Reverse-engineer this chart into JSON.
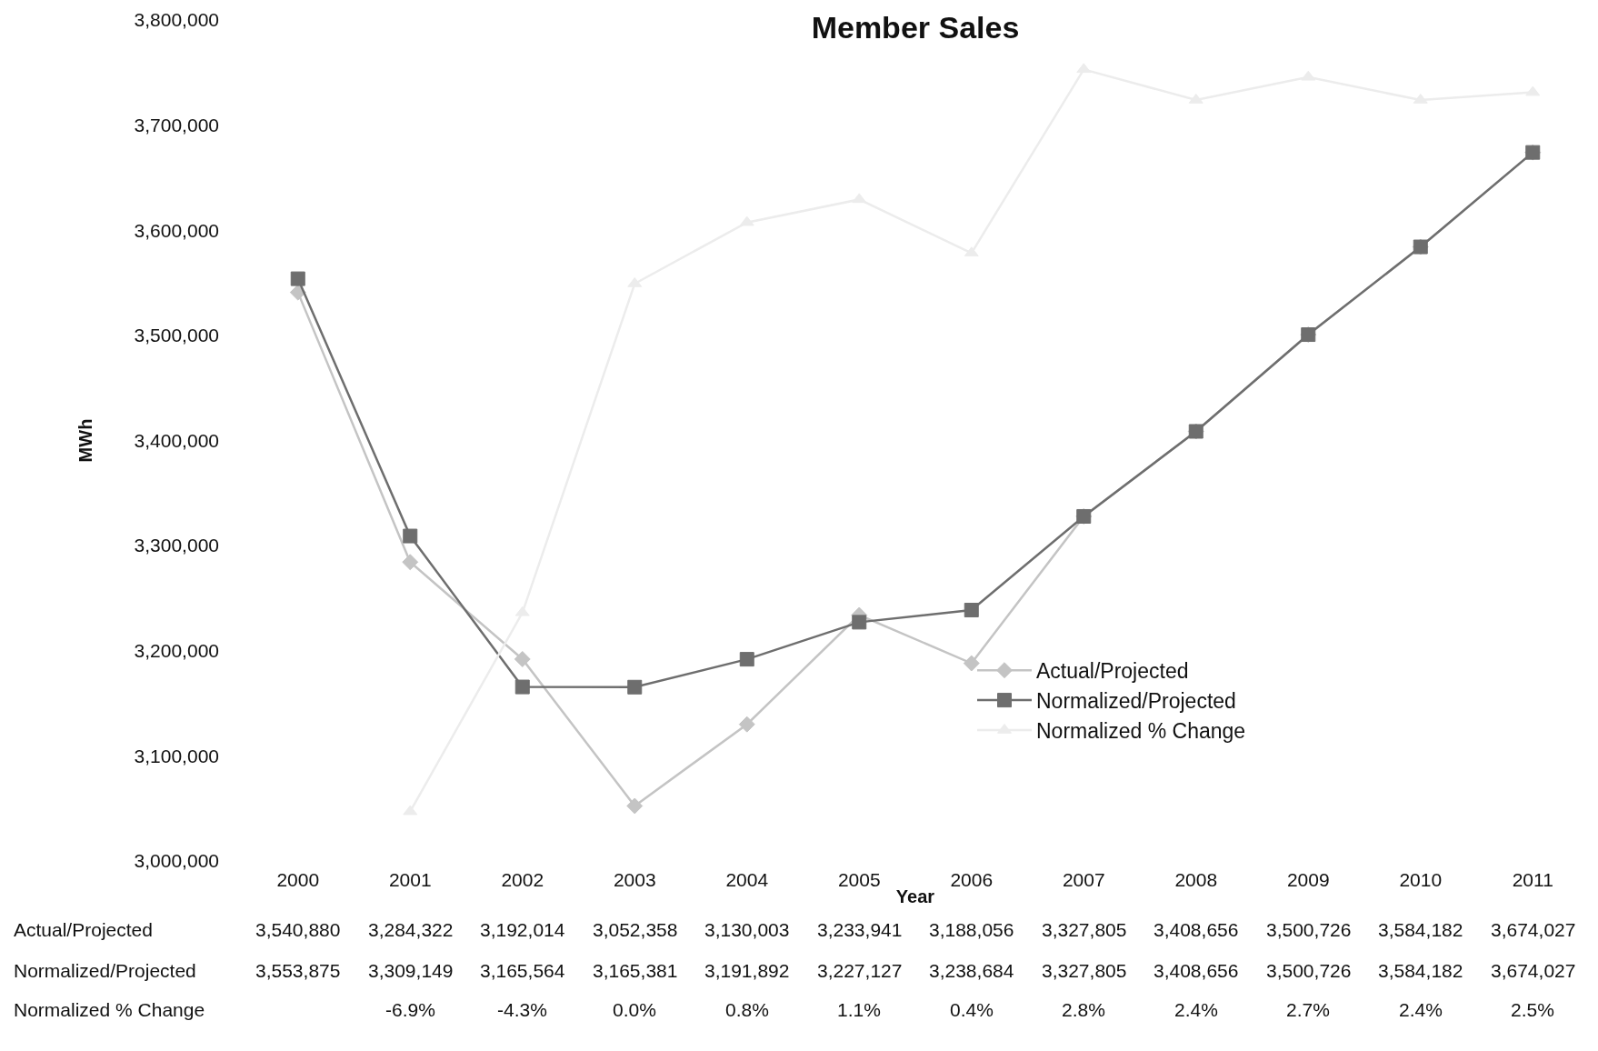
{
  "chart_data": {
    "type": "line",
    "title": "Member Sales",
    "xlabel": "Year",
    "ylabel": "MWh",
    "categories": [
      "2000",
      "2001",
      "2002",
      "2003",
      "2004",
      "2005",
      "2006",
      "2007",
      "2008",
      "2009",
      "2010",
      "2011"
    ],
    "ylim": [
      3000000,
      3800000
    ],
    "yticks": [
      {
        "value": 3000000,
        "label": "3,000,000"
      },
      {
        "value": 3100000,
        "label": "3,100,000"
      },
      {
        "value": 3200000,
        "label": "3,200,000"
      },
      {
        "value": 3300000,
        "label": "3,300,000"
      },
      {
        "value": 3400000,
        "label": "3,400,000"
      },
      {
        "value": 3500000,
        "label": "3,500,000"
      },
      {
        "value": 3600000,
        "label": "3,600,000"
      },
      {
        "value": 3700000,
        "label": "3,700,000"
      },
      {
        "value": 3800000,
        "label": "3,800,000"
      }
    ],
    "grid": false,
    "legend": "right",
    "series": [
      {
        "name": "Actual/Projected",
        "color": "#c4c4c4",
        "marker": "diamond",
        "values": [
          3540880,
          3284322,
          3192014,
          3052358,
          3130003,
          3233941,
          3188056,
          3327805,
          3408656,
          3500726,
          3584182,
          3674027
        ],
        "value_labels": [
          "3,540,880",
          "3,284,322",
          "3,192,014",
          "3,052,358",
          "3,130,003",
          "3,233,941",
          "3,188,056",
          "3,327,805",
          "3,408,656",
          "3,500,726",
          "3,584,182",
          "3,674,027"
        ]
      },
      {
        "name": "Normalized/Projected",
        "color": "#6e6e6e",
        "marker": "square",
        "values": [
          3553875,
          3309149,
          3165564,
          3165381,
          3191892,
          3227127,
          3238684,
          3327805,
          3408656,
          3500726,
          3584182,
          3674027
        ],
        "value_labels": [
          "3,553,875",
          "3,309,149",
          "3,165,564",
          "3,165,381",
          "3,191,892",
          "3,227,127",
          "3,238,684",
          "3,327,805",
          "3,408,656",
          "3,500,726",
          "3,584,182",
          "3,674,027"
        ]
      },
      {
        "name": "Normalized % Change",
        "color": "#ececec",
        "marker": "triangle",
        "axis": "y2",
        "values": [
          null,
          -6.9,
          -4.3,
          0.0,
          0.8,
          1.1,
          0.4,
          2.8,
          2.4,
          2.7,
          2.4,
          2.5
        ],
        "value_labels": [
          null,
          "-6.9%",
          "-4.3%",
          "0.0%",
          "0.8%",
          "1.1%",
          "0.4%",
          "2.8%",
          "2.4%",
          "2.7%",
          "2.4%",
          "2.5%"
        ]
      }
    ]
  }
}
